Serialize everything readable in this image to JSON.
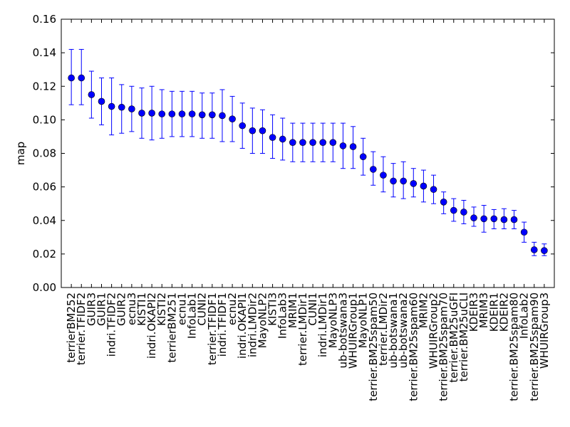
{
  "chart_data": {
    "type": "scatter",
    "ylabel": "map",
    "xlabel": "",
    "title": "",
    "ylim": [
      0.0,
      0.16
    ],
    "yticks": [
      "0.00",
      "0.02",
      "0.04",
      "0.06",
      "0.08",
      "0.10",
      "0.12",
      "0.14",
      "0.16"
    ],
    "grid": false,
    "point_color": "#0000ff",
    "errorbar_color": "#0000ff",
    "categories": [
      "terrierBM252",
      "terrier.TFIDF2",
      "GUIR3",
      "GUIR1",
      "indri.TFIDF2",
      "GUIR2",
      "ecnu3",
      "KISTI1",
      "indri.OKAPI2",
      "KISTI2",
      "terrierBM251",
      "ecnu1",
      "InfoLab1",
      "CUNI2",
      "terrier.TFIDF1",
      "indri.TFIDF1",
      "ecnu2",
      "indri.OKAPI1",
      "indri.LMDir2",
      "MayoNLP2",
      "KISTI3",
      "InfoLab3",
      "MRIM1",
      "terrier.LMDir1",
      "CUNI1",
      "indri.LMDir1",
      "MayoNLP3",
      "ub-botswana3",
      "WHUIRGroup1",
      "MayoNLP1",
      "terrier.BM25spam50",
      "terrier.LMDir2",
      "ub-botswana1",
      "ub-botswana2",
      "terrier.BM25spam60",
      "MRIM2",
      "WHUIRGroup2",
      "terrier.BM25spam70",
      "terrier.BM25uGFI",
      "terrier.BM25uCLI",
      "KDEIR3",
      "MRIM3",
      "KDEIR1",
      "KDEIR2",
      "terrier.BM25spam80",
      "InfoLab2",
      "terrier.BM25spam90",
      "WHUIRGroup3"
    ],
    "values": [
      0.125,
      0.125,
      0.115,
      0.111,
      0.108,
      0.1075,
      0.1065,
      0.104,
      0.104,
      0.1035,
      0.1035,
      0.1035,
      0.1035,
      0.103,
      0.103,
      0.1025,
      0.1005,
      0.0965,
      0.0935,
      0.0935,
      0.0895,
      0.0885,
      0.0865,
      0.0865,
      0.0865,
      0.0865,
      0.0865,
      0.0845,
      0.084,
      0.078,
      0.0705,
      0.067,
      0.0635,
      0.0635,
      0.062,
      0.0605,
      0.0585,
      0.051,
      0.046,
      0.045,
      0.0415,
      0.041,
      0.041,
      0.0405,
      0.0405,
      0.033,
      0.0225,
      0.022
    ],
    "error_low": [
      0.109,
      0.109,
      0.101,
      0.097,
      0.091,
      0.092,
      0.093,
      0.089,
      0.088,
      0.089,
      0.09,
      0.09,
      0.09,
      0.089,
      0.089,
      0.087,
      0.087,
      0.083,
      0.08,
      0.08,
      0.077,
      0.076,
      0.075,
      0.075,
      0.075,
      0.075,
      0.075,
      0.071,
      0.071,
      0.067,
      0.061,
      0.057,
      0.054,
      0.053,
      0.054,
      0.051,
      0.05,
      0.044,
      0.0395,
      0.038,
      0.0365,
      0.033,
      0.035,
      0.035,
      0.035,
      0.027,
      0.019,
      0.019
    ],
    "error_high": [
      0.142,
      0.142,
      0.129,
      0.125,
      0.125,
      0.121,
      0.12,
      0.119,
      0.12,
      0.118,
      0.117,
      0.117,
      0.117,
      0.116,
      0.116,
      0.118,
      0.114,
      0.11,
      0.107,
      0.106,
      0.103,
      0.101,
      0.098,
      0.098,
      0.098,
      0.098,
      0.098,
      0.098,
      0.096,
      0.089,
      0.081,
      0.078,
      0.074,
      0.075,
      0.071,
      0.07,
      0.067,
      0.057,
      0.053,
      0.052,
      0.048,
      0.049,
      0.0465,
      0.047,
      0.046,
      0.039,
      0.027,
      0.026
    ]
  }
}
